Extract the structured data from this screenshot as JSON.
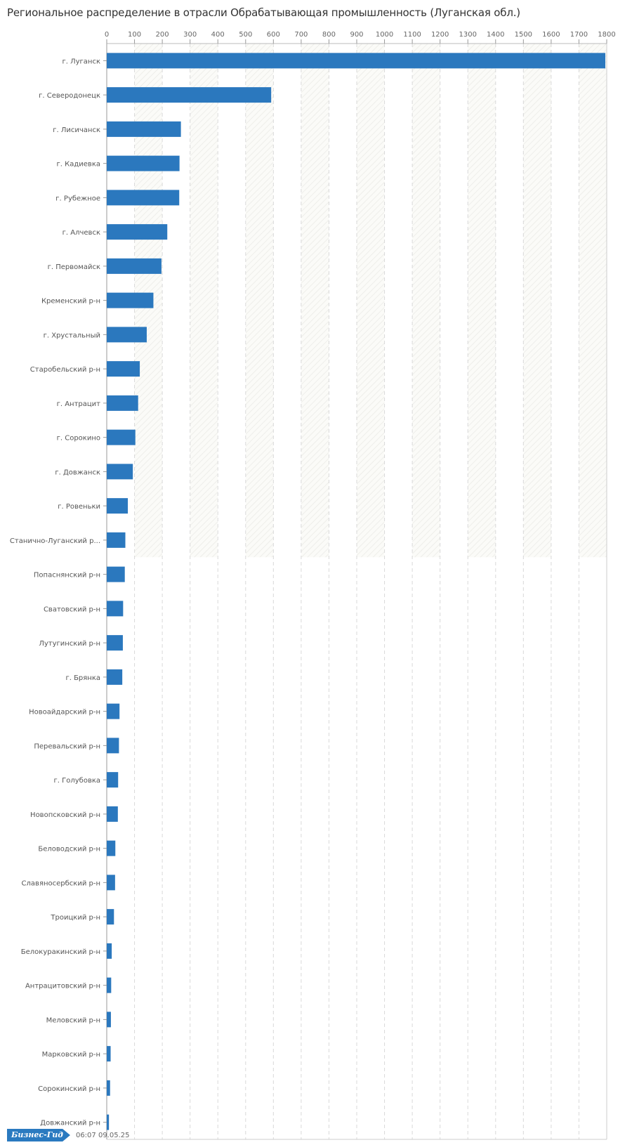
{
  "chart_data": {
    "type": "bar",
    "orientation": "horizontal",
    "title": "Региональное распределение в отрасли Обрабатывающая промышленность (Луганская обл.)",
    "xlim": [
      0,
      1800
    ],
    "x_ticks": [
      0,
      100,
      200,
      300,
      400,
      500,
      600,
      700,
      800,
      900,
      1000,
      1100,
      1200,
      1300,
      1400,
      1500,
      1600,
      1700,
      1800
    ],
    "grid": true,
    "color": "#2b78be",
    "categories": [
      "г. Луганск",
      "г. Северодонецк",
      "г. Лисичанск",
      "г. Кадиевка",
      "г. Рубежное",
      "г. Алчевск",
      "г. Первомайск",
      "Кременский р-н",
      "г. Хрустальный",
      "Старобельский р-н",
      "г. Антрацит",
      "г. Сорокино",
      "г. Довжанск",
      "г. Ровеньки",
      "Станично-Луганский р...",
      "Попаснянский р-н",
      "Сватовский р-н",
      "Лутугинский р-н",
      "г. Брянка",
      "Новоайдарский р-н",
      "Перевальский р-н",
      "г. Голубовка",
      "Новопсковский р-н",
      "Беловодский р-н",
      "Славяносербский р-н",
      "Троицкий р-н",
      "Белокуракинский р-н",
      "Антрацитовский р-н",
      "Меловский р-н",
      "Марковский р-н",
      "Сорокинский р-н",
      "Довжанский р-н"
    ],
    "values": [
      1795,
      592,
      267,
      262,
      261,
      218,
      197,
      168,
      144,
      119,
      113,
      103,
      94,
      76,
      67,
      65,
      59,
      58,
      56,
      46,
      44,
      41,
      40,
      31,
      30,
      26,
      18,
      16,
      15,
      14,
      12,
      8
    ]
  },
  "footer": {
    "logo": "Бизнес-Гид",
    "timestamp": "06:07 09.05.25"
  }
}
